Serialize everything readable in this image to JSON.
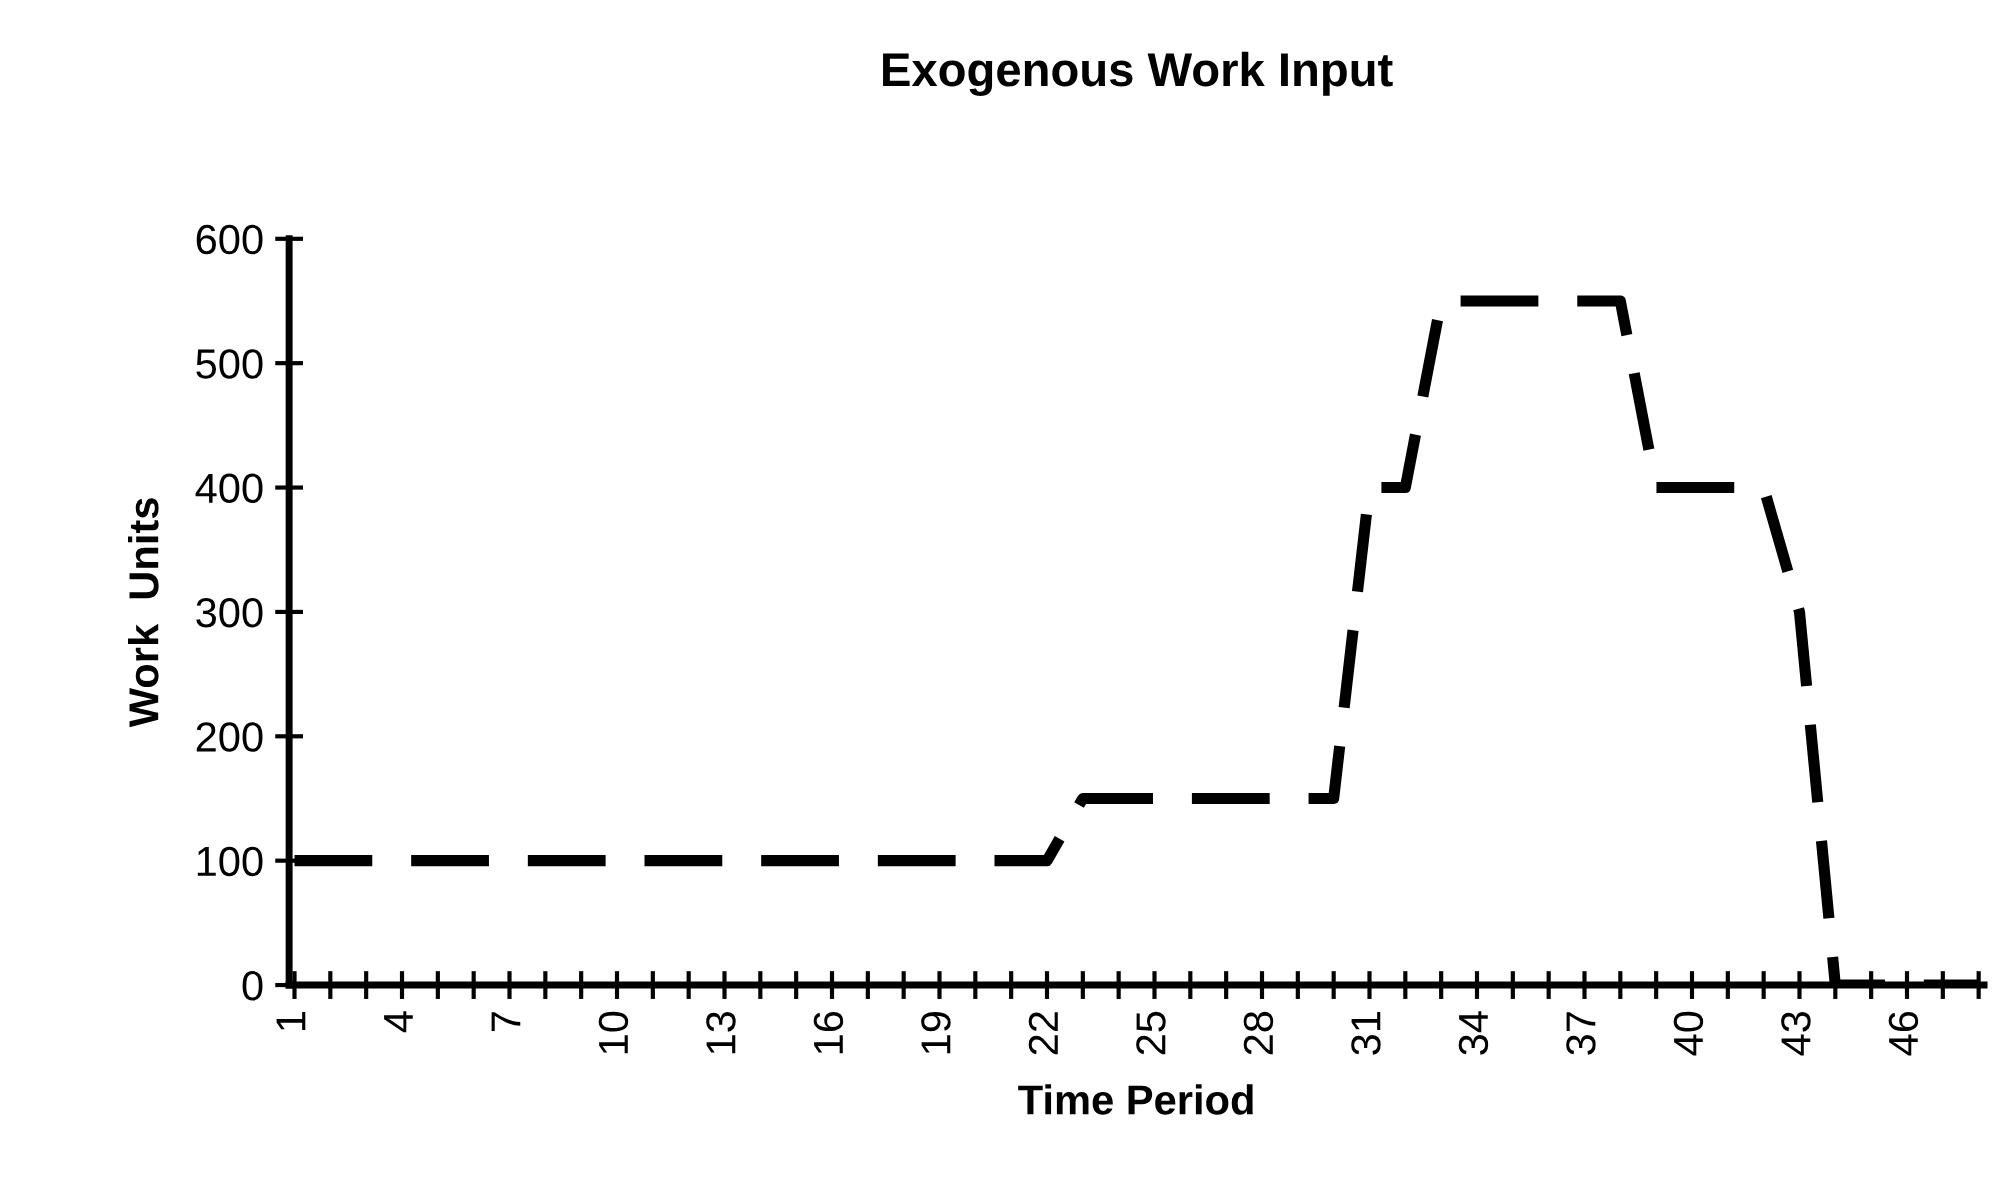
{
  "chart_data": {
    "type": "line",
    "title": "Exogenous Work Input",
    "xlabel": "Time Period",
    "ylabel": "Work  Units",
    "categories": [
      "1",
      null,
      null,
      "4",
      null,
      null,
      "7",
      null,
      null,
      "10",
      null,
      null,
      "13",
      null,
      null,
      "16",
      null,
      null,
      "19",
      null,
      null,
      "22",
      null,
      null,
      "25",
      null,
      null,
      "28",
      null,
      null,
      "31",
      null,
      null,
      "34",
      null,
      null,
      "37",
      null,
      null,
      "40",
      null,
      null,
      "43",
      null,
      null,
      "46",
      null,
      null
    ],
    "series": [
      {
        "color": "#000000",
        "values": [
          100,
          100,
          100,
          100,
          100,
          100,
          100,
          100,
          100,
          100,
          100,
          100,
          100,
          100,
          100,
          100,
          100,
          100,
          100,
          100,
          100,
          100,
          150,
          150,
          150,
          150,
          150,
          150,
          150,
          150,
          400,
          400,
          550,
          550,
          550,
          550,
          550,
          550,
          400,
          400,
          400,
          400,
          300,
          0,
          0,
          0,
          0,
          0
        ]
      }
    ],
    "ylim": [
      0,
      600
    ],
    "yticks": [
      0,
      100,
      200,
      300,
      400,
      500,
      600
    ],
    "grid": false,
    "line_style": "dashed",
    "marker": "none"
  }
}
